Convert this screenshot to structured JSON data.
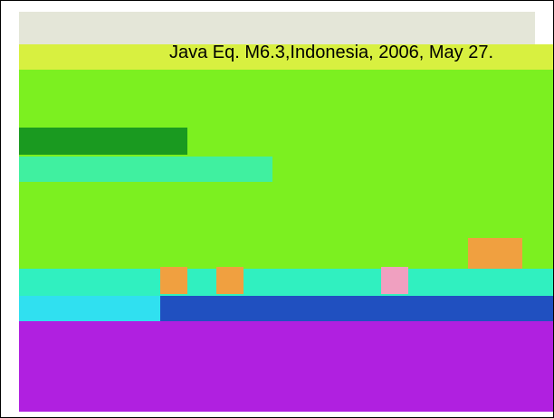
{
  "caption": "Java Eq. M6.3,Indonesia, 2006, May 27."
}
